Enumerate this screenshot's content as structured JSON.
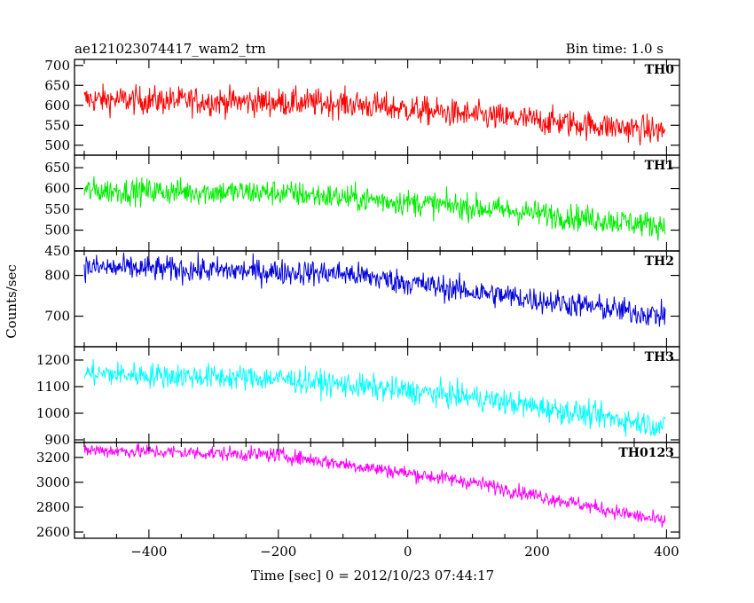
{
  "header": {
    "title": "ae121023074417_wam2_trn",
    "bin_time": "Bin time: 1.0 s"
  },
  "chart_data": {
    "type": "line",
    "xlabel": "Time [sec] 0 = 2012/10/23 07:44:17",
    "ylabel": "Counts/sec",
    "xlim": [
      -515,
      420
    ],
    "x_ticks": [
      -400,
      -200,
      0,
      200,
      400
    ],
    "x_tick_labels": [
      "−400",
      "−200",
      "0",
      "200",
      "400"
    ],
    "x_range": [
      -500,
      398
    ],
    "grid": false,
    "panels": [
      {
        "name": "TH0",
        "color": "#ff0000",
        "ylim": [
          475,
          715
        ],
        "yticks": [
          500,
          550,
          600,
          650,
          700
        ],
        "ytick_labels": [
          "500",
          "550",
          "600",
          "650",
          "700"
        ],
        "trend": [
          [
            -500,
            615
          ],
          [
            -100,
            605
          ],
          [
            100,
            575
          ],
          [
            400,
            535
          ]
        ],
        "noise": 45
      },
      {
        "name": "TH1",
        "color": "#00ee00",
        "ylim": [
          450,
          680
        ],
        "yticks": [
          450,
          500,
          550,
          600,
          650
        ],
        "ytick_labels": [
          "450",
          "500",
          "550",
          "600",
          "650"
        ],
        "trend": [
          [
            -500,
            595
          ],
          [
            -200,
            590
          ],
          [
            100,
            555
          ],
          [
            400,
            510
          ]
        ],
        "noise": 40
      },
      {
        "name": "TH2",
        "color": "#0000dd",
        "ylim": [
          625,
          860
        ],
        "yticks": [
          700,
          800
        ],
        "ytick_labels": [
          "700",
          "800"
        ],
        "trend": [
          [
            -500,
            820
          ],
          [
            -100,
            805
          ],
          [
            100,
            760
          ],
          [
            400,
            700
          ]
        ],
        "noise": 40
      },
      {
        "name": "TH3",
        "color": "#00ffff",
        "ylim": [
          890,
          1250
        ],
        "yticks": [
          900,
          1000,
          1100,
          1200
        ],
        "ytick_labels": [
          "900",
          "1000",
          "1100",
          "1200"
        ],
        "trend": [
          [
            -500,
            1150
          ],
          [
            -200,
            1130
          ],
          [
            100,
            1060
          ],
          [
            400,
            950
          ]
        ],
        "noise": 60
      },
      {
        "name": "TH0123",
        "color": "#ff00ff",
        "ylim": [
          2550,
          3320
        ],
        "yticks": [
          2600,
          2800,
          3000,
          3200
        ],
        "ytick_labels": [
          "2600",
          "2800",
          "3000",
          "3200"
        ],
        "trend": [
          [
            -500,
            3260
          ],
          [
            -200,
            3220
          ],
          [
            100,
            3000
          ],
          [
            400,
            2680
          ]
        ],
        "noise": 75
      }
    ]
  }
}
